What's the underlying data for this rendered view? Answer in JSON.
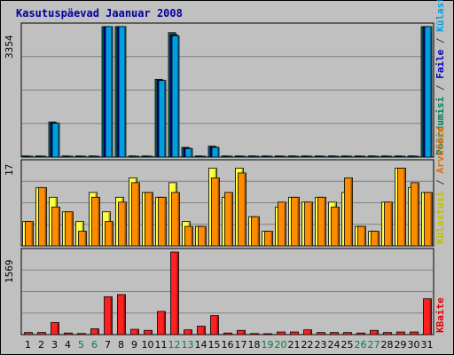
{
  "title": "Kasutuspäevad Jaanuar 2008",
  "legend_top": [
    {
      "text": "Pöördumisi",
      "color": "#00805c"
    },
    {
      "text": " / ",
      "color": "#404040"
    },
    {
      "text": "Faile",
      "color": "#0000c0"
    },
    {
      "text": " / ",
      "color": "#404040"
    },
    {
      "text": "Külastajaid",
      "color": "#00a0e0"
    }
  ],
  "legend_mid": [
    {
      "text": "Külastusi",
      "color": "#c0c000"
    },
    {
      "text": " / ",
      "color": "#404040"
    },
    {
      "text": "Arvuteid",
      "color": "#e07000"
    }
  ],
  "legend_bot": [
    {
      "text": "KBaite",
      "color": "#e00000"
    }
  ],
  "chart_data": [
    {
      "type": "bar",
      "ylabel": "3354",
      "ylim": [
        0,
        3354
      ],
      "categories": [
        "1",
        "2",
        "3",
        "4",
        "5",
        "6",
        "7",
        "8",
        "9",
        "10",
        "11",
        "12",
        "13",
        "14",
        "15",
        "16",
        "17",
        "18",
        "19",
        "20",
        "21",
        "22",
        "23",
        "24",
        "25",
        "26",
        "27",
        "28",
        "29",
        "30",
        "31"
      ],
      "series": [
        {
          "name": "Pöördumisi",
          "color": "#00805c",
          "values": [
            30,
            30,
            900,
            30,
            30,
            30,
            3354,
            3354,
            30,
            30,
            2000,
            3200,
            250,
            30,
            280,
            30,
            30,
            30,
            30,
            30,
            30,
            30,
            30,
            30,
            30,
            30,
            30,
            30,
            30,
            30,
            3354
          ]
        },
        {
          "name": "Faile",
          "color": "#0000c0",
          "values": [
            20,
            20,
            880,
            20,
            20,
            20,
            3354,
            3354,
            20,
            20,
            1980,
            3150,
            230,
            20,
            260,
            20,
            20,
            20,
            20,
            20,
            20,
            20,
            20,
            20,
            20,
            20,
            20,
            20,
            20,
            20,
            3354
          ]
        },
        {
          "name": "Külastajaid",
          "color": "#00a0e0",
          "values": [
            10,
            10,
            870,
            10,
            10,
            10,
            3354,
            3354,
            10,
            10,
            1970,
            3120,
            220,
            10,
            250,
            10,
            10,
            10,
            10,
            10,
            10,
            10,
            10,
            10,
            10,
            10,
            10,
            10,
            10,
            10,
            3354
          ]
        }
      ]
    },
    {
      "type": "bar",
      "ylabel": "17",
      "ylim": [
        0,
        17
      ],
      "categories": [
        "1",
        "2",
        "3",
        "4",
        "5",
        "6",
        "7",
        "8",
        "9",
        "10",
        "11",
        "12",
        "13",
        "14",
        "15",
        "16",
        "17",
        "18",
        "19",
        "20",
        "21",
        "22",
        "23",
        "24",
        "25",
        "26",
        "27",
        "28",
        "29",
        "30",
        "31"
      ],
      "series": [
        {
          "name": "Külastusi",
          "color": "#ffff40",
          "values": [
            5,
            12,
            10,
            7,
            5,
            11,
            7,
            10,
            14,
            11,
            10,
            13,
            5,
            4,
            16,
            10,
            16,
            6,
            3,
            8,
            10,
            9,
            10,
            9,
            11,
            4,
            3,
            9,
            16,
            12,
            11
          ]
        },
        {
          "name": "Arvuteid",
          "color": "#ff8c00",
          "values": [
            5,
            12,
            8,
            7,
            3,
            10,
            5,
            9,
            13,
            11,
            10,
            11,
            4,
            4,
            14,
            11,
            15,
            6,
            3,
            9,
            10,
            9,
            10,
            8,
            14,
            4,
            3,
            9,
            16,
            13,
            11
          ]
        }
      ]
    },
    {
      "type": "bar",
      "ylabel": "1569",
      "ylim": [
        0,
        1569
      ],
      "categories": [
        "1",
        "2",
        "3",
        "4",
        "5",
        "6",
        "7",
        "8",
        "9",
        "10",
        "11",
        "12",
        "13",
        "14",
        "15",
        "16",
        "17",
        "18",
        "19",
        "20",
        "21",
        "22",
        "23",
        "24",
        "25",
        "26",
        "27",
        "28",
        "29",
        "30",
        "31"
      ],
      "weekend_days": [
        "5",
        "6",
        "12",
        "13",
        "19",
        "20",
        "26",
        "27"
      ],
      "series": [
        {
          "name": "KBaite",
          "color": "#ff2020",
          "values": [
            40,
            40,
            230,
            30,
            20,
            110,
            720,
            760,
            100,
            80,
            440,
            1569,
            90,
            160,
            360,
            30,
            80,
            20,
            10,
            50,
            50,
            90,
            40,
            40,
            40,
            30,
            80,
            40,
            50,
            50,
            680
          ]
        }
      ]
    }
  ]
}
